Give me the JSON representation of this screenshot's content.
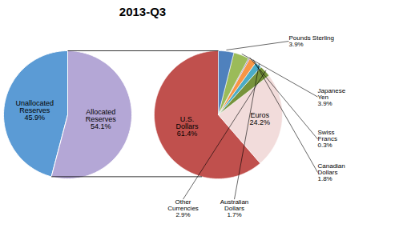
{
  "chart_data": [
    {
      "type": "pie",
      "title": "2013-Q3",
      "categories": [
        "Unallocated\nReserves",
        "Allocated\nReserves"
      ],
      "values": [
        45.9,
        54.1
      ],
      "value_labels": [
        "45.9%",
        "54.1%"
      ],
      "colors": [
        "#5B9BD5",
        "#B4A7D6"
      ],
      "data_labels": true
    },
    {
      "type": "pie",
      "categories": [
        "U.S.\nDollars",
        "Euros",
        "Other\nCurrencies",
        "Australian\nDollars",
        "Canadian\nDollars",
        "Swiss\nFrancs",
        "Japanese\nYen",
        "Pounds Sterling"
      ],
      "values": [
        61.4,
        24.2,
        2.9,
        1.7,
        1.8,
        0.3,
        3.9,
        3.9
      ],
      "value_labels": [
        "61.4%",
        "24.2%",
        "2.9%",
        "1.7%",
        "1.8%",
        "0.3%",
        "3.9%",
        "3.9%"
      ],
      "colors": [
        "#C0504D",
        "#F2DCDB",
        "#77933C",
        "#4BACC6",
        "#F79646",
        "#8064A2",
        "#9BBB59",
        "#4F81BD"
      ],
      "data_labels": true
    }
  ]
}
